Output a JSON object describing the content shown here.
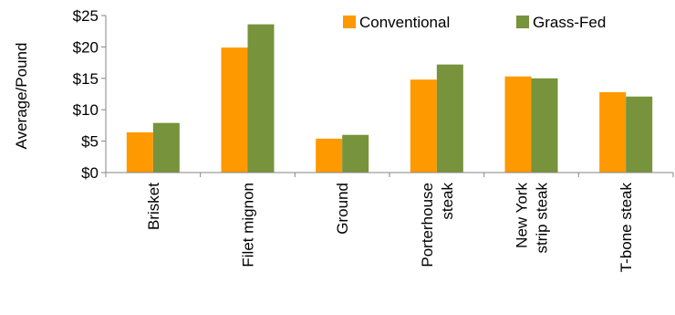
{
  "chart_data": {
    "type": "bar",
    "categories": [
      [
        "Brisket"
      ],
      [
        "Filet mignon"
      ],
      [
        "Ground"
      ],
      [
        "Porterhouse",
        "steak"
      ],
      [
        "New York",
        "strip steak"
      ],
      [
        "T-bone steak"
      ]
    ],
    "series": [
      {
        "name": "Conventional",
        "color": "#FF9900",
        "values": [
          6.4,
          19.9,
          5.4,
          14.8,
          15.3,
          12.8
        ]
      },
      {
        "name": "Grass-Fed",
        "color": "#77933C",
        "values": [
          7.9,
          23.6,
          6.0,
          17.2,
          15.0,
          12.1
        ]
      }
    ],
    "ylabel": "Average/Pound",
    "ylim": [
      0,
      25
    ],
    "yticks": [
      0,
      5,
      10,
      15,
      20,
      25
    ],
    "ytick_labels": [
      "$0",
      "$5",
      "$10",
      "$15",
      "$20",
      "$25"
    ],
    "grid": false,
    "legend_position": "top-right"
  }
}
